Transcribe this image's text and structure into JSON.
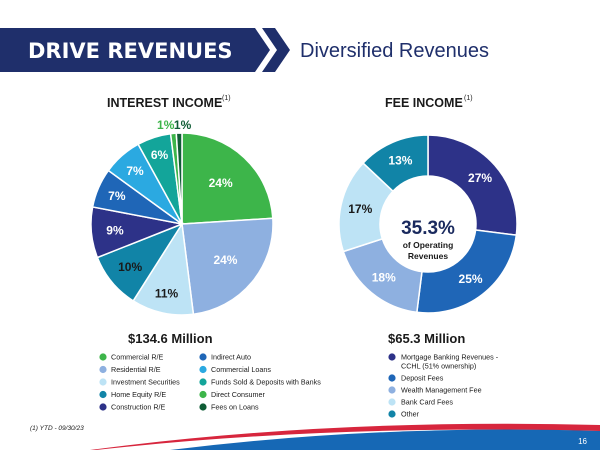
{
  "header": {
    "title": "DRIVE REVENUES",
    "subtitle": "Diversified Revenues"
  },
  "footnote": "(1) YTD - 09/30/23",
  "page_number": "16",
  "chart_data": [
    {
      "type": "pie",
      "title": "INTEREST INCOME",
      "title_superscript": "(1)",
      "total_label": "$134.6 Million",
      "series": [
        {
          "name": "Commercial R/E",
          "value": 24,
          "label": "24%",
          "color": "#3db54a"
        },
        {
          "name": "Residential R/E",
          "value": 24,
          "label": "24%",
          "color": "#8eb0e0"
        },
        {
          "name": "Investment Securities",
          "value": 11,
          "label": "11%",
          "color": "#bde3f5"
        },
        {
          "name": "Home Equity R/E",
          "value": 10,
          "label": "10%",
          "color": "#1184a7"
        },
        {
          "name": "Construction R/E",
          "value": 9,
          "label": "9%",
          "color": "#2d3288"
        },
        {
          "name": "Indirect Auto",
          "value": 7,
          "label": "7%",
          "color": "#1f66b7"
        },
        {
          "name": "Commercial Loans",
          "value": 7,
          "label": "7%",
          "color": "#2ba9e1"
        },
        {
          "name": "Funds Sold & Deposits with Banks",
          "value": 6,
          "label": "6%",
          "color": "#13a59a"
        },
        {
          "name": "Direct Consumer",
          "value": 1,
          "label": "1%",
          "color": "#3db54a"
        },
        {
          "name": "Fees on Loans",
          "value": 1,
          "label": "1%",
          "color": "#0f5c35"
        }
      ]
    },
    {
      "type": "pie",
      "title": "FEE INCOME",
      "title_superscript": "(1)",
      "total_label": "$65.3 Million",
      "center_value": "35.3%",
      "center_text_line1": "of Operating",
      "center_text_line2": "Revenues",
      "series": [
        {
          "name": "Mortgage Banking Revenues -",
          "name_line2": "CCHL (51% ownership)",
          "value": 27,
          "label": "27%",
          "color": "#2d3288"
        },
        {
          "name": "Deposit Fees",
          "value": 25,
          "label": "25%",
          "color": "#1f66b7"
        },
        {
          "name": "Wealth Management Fee",
          "value": 18,
          "label": "18%",
          "color": "#8eb0e0"
        },
        {
          "name": "Bank Card Fees",
          "value": 17,
          "label": "17%",
          "color": "#bde3f5"
        },
        {
          "name": "Other",
          "value": 13,
          "label": "13%",
          "color": "#1184a7"
        }
      ]
    }
  ]
}
